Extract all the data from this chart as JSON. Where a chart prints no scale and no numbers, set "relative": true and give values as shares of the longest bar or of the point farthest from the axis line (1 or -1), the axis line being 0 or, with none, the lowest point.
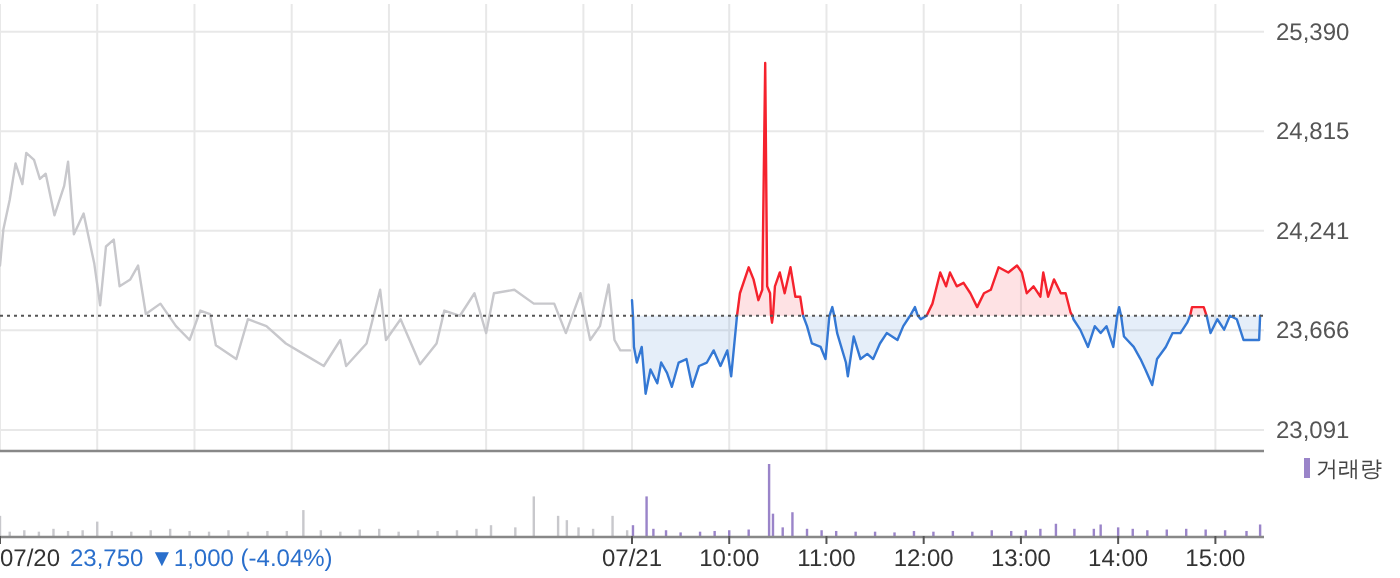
{
  "chart_data": [
    {
      "type": "line",
      "xlim": [
        2.5,
        15.5
      ],
      "ylim": [
        22975,
        25550
      ],
      "xticks": [
        2.5,
        3.5,
        4.5,
        5.5,
        6.5,
        7.5,
        8.5,
        9,
        10,
        11,
        12,
        13,
        14,
        15
      ],
      "yticks": [
        {
          "value": 23091,
          "label": "23,091"
        },
        {
          "value": 23666,
          "label": "23,666"
        },
        {
          "value": 24241,
          "label": "24,241"
        },
        {
          "value": 24815,
          "label": "24,815"
        },
        {
          "value": 25390,
          "label": "25,390"
        }
      ],
      "grid": true,
      "tick_labels": "y",
      "ref_lines": [
        {
          "axis": "y",
          "value": 23750,
          "color": "#555555",
          "line_style": "dotted"
        }
      ],
      "x": [
        9.0,
        9.01,
        9.02,
        9.05,
        9.1,
        9.14,
        9.19,
        9.26,
        9.3,
        9.36,
        9.41,
        9.48,
        9.56,
        9.62,
        9.69,
        9.77,
        9.84,
        9.91,
        9.98,
        10.02,
        10.08,
        10.11,
        10.2,
        10.25,
        10.3,
        10.34,
        10.37,
        10.39,
        10.42,
        10.43,
        10.44,
        10.45,
        10.47,
        10.52,
        10.57,
        10.63,
        10.68,
        10.73,
        10.76,
        10.8,
        10.85,
        10.94,
        10.99,
        11.03,
        11.06,
        11.08,
        11.11,
        11.2,
        11.22,
        11.28,
        11.35,
        11.42,
        11.48,
        11.55,
        11.62,
        11.73,
        11.79,
        11.86,
        11.91,
        11.94,
        11.97,
        12.03,
        12.09,
        12.17,
        12.23,
        12.27,
        12.34,
        12.41,
        12.48,
        12.55,
        12.62,
        12.69,
        12.77,
        12.87,
        12.96,
        13.01,
        13.06,
        13.13,
        13.2,
        13.23,
        13.28,
        13.34,
        13.41,
        13.46,
        13.51,
        13.53,
        13.54,
        13.61,
        13.69,
        13.76,
        13.82,
        13.88,
        13.95,
        13.99,
        14.01,
        14.03,
        14.06,
        14.16,
        14.23,
        14.28,
        14.35,
        14.4,
        14.49,
        14.56,
        14.64,
        14.71,
        14.74,
        14.76,
        14.88,
        14.91,
        14.95,
        15.02,
        15.09,
        15.15,
        15.22,
        15.29,
        15.45,
        15.46
      ],
      "series": [
        {
          "color": "#c8c8cc",
          "x": [
            2.5,
            2.535,
            2.6,
            2.66,
            2.73,
            2.77,
            2.85,
            2.91,
            2.97,
            3.06,
            3.16,
            3.2,
            3.26,
            3.36,
            3.47,
            3.53,
            3.59,
            3.67,
            3.73,
            3.84,
            3.92,
            4.0,
            4.15,
            4.31,
            4.45,
            4.56,
            4.66,
            4.72,
            4.93,
            5.05,
            5.24,
            5.44,
            5.65,
            5.83,
            6.0,
            6.06,
            6.27,
            6.41,
            6.47,
            6.62,
            6.82,
            6.99,
            7.07,
            7.23,
            7.38,
            7.5,
            7.58,
            7.79,
            7.99,
            8.2,
            8.32,
            8.47,
            8.57,
            8.67,
            8.76,
            8.82,
            8.88,
            8.98
          ],
          "values": [
            24040,
            24250,
            24420,
            24630,
            24510,
            24690,
            24650,
            24540,
            24570,
            24330,
            24500,
            24640,
            24220,
            24340,
            24050,
            23810,
            24150,
            24190,
            23920,
            23960,
            24040,
            23760,
            23820,
            23690,
            23610,
            23780,
            23760,
            23580,
            23500,
            23730,
            23690,
            23590,
            23520,
            23460,
            23610,
            23460,
            23590,
            23900,
            23610,
            23730,
            23470,
            23590,
            23780,
            23750,
            23880,
            23650,
            23880,
            23900,
            23820,
            23820,
            23650,
            23880,
            23610,
            23690,
            23930,
            23610,
            23550,
            23550
          ]
        },
        {
          "type": "area",
          "color": "#f5222d",
          "values": [
            null,
            null,
            null,
            null,
            null,
            null,
            null,
            null,
            null,
            null,
            null,
            null,
            null,
            null,
            null,
            null,
            null,
            null,
            null,
            null,
            23750,
            23880,
            24030,
            23960,
            23840,
            23900,
            25210,
            23920,
            23880,
            23750,
            23710,
            23750,
            23920,
            24000,
            23880,
            24030,
            23860,
            23860,
            23750,
            null,
            null,
            null,
            null,
            null,
            null,
            null,
            null,
            null,
            null,
            null,
            null,
            null,
            null,
            null,
            null,
            null,
            null,
            null,
            null,
            null,
            null,
            23750,
            23820,
            24000,
            23920,
            24000,
            23920,
            23940,
            23880,
            23800,
            23880,
            23900,
            24030,
            24000,
            24040,
            24000,
            23880,
            23920,
            23860,
            24000,
            23860,
            23960,
            23880,
            23880,
            23770,
            23750,
            null,
            null,
            null,
            null,
            null,
            null,
            null,
            null,
            null,
            null,
            null,
            null,
            null,
            null,
            null,
            null,
            null,
            null,
            null,
            null,
            23750,
            23800,
            23800,
            23750,
            null,
            null,
            null,
            null,
            null,
            null,
            null,
            null
          ]
        },
        {
          "type": "area",
          "color": "#3478d4",
          "values": [
            23840,
            23750,
            23570,
            23480,
            23570,
            23300,
            23440,
            23360,
            23480,
            23420,
            23340,
            23480,
            23500,
            23340,
            23460,
            23480,
            23550,
            23460,
            23550,
            23400,
            23750,
            null,
            null,
            null,
            null,
            null,
            null,
            null,
            null,
            null,
            null,
            null,
            null,
            null,
            null,
            null,
            null,
            null,
            23750,
            23690,
            23590,
            23570,
            23500,
            23750,
            23800,
            23750,
            23650,
            23480,
            23400,
            23630,
            23500,
            23530,
            23500,
            23590,
            23650,
            23610,
            23690,
            23750,
            23800,
            23750,
            23730,
            23750,
            null,
            null,
            null,
            null,
            null,
            null,
            null,
            null,
            null,
            null,
            null,
            null,
            null,
            null,
            null,
            null,
            null,
            null,
            null,
            null,
            null,
            null,
            null,
            23750,
            23730,
            23670,
            23570,
            23690,
            23650,
            23690,
            23570,
            23750,
            23800,
            23750,
            23630,
            23570,
            23500,
            23440,
            23350,
            23500,
            23570,
            23650,
            23650,
            23710,
            23750,
            null,
            null,
            23750,
            23650,
            23730,
            23670,
            23750,
            23730,
            23610,
            23610,
            23750
          ]
        }
      ]
    },
    {
      "type": "bar",
      "relative": true,
      "xlim": [
        2.5,
        15.5
      ],
      "xticks": [
        {
          "value": 2.5,
          "label": "07/20"
        },
        {
          "value": 9,
          "label": "07/21"
        },
        {
          "value": 10,
          "label": "10:00"
        },
        {
          "value": 11,
          "label": "11:00"
        },
        {
          "value": 12,
          "label": "12:00"
        },
        {
          "value": 13,
          "label": "13:00"
        },
        {
          "value": 14,
          "label": "14:00"
        },
        {
          "value": 15,
          "label": "15:00"
        }
      ],
      "tick_labels": "x",
      "legend": "top right",
      "annotations": [
        "23,750 ▼1,000 (-4.04%)"
      ],
      "series": [
        {
          "color": "#c8c8cc",
          "x": [
            2.5,
            2.6,
            2.75,
            2.9,
            3.05,
            3.2,
            3.35,
            3.5,
            3.65,
            3.85,
            4.05,
            4.25,
            4.45,
            4.65,
            4.85,
            5.05,
            5.25,
            5.45,
            5.62,
            5.8,
            6.0,
            6.2,
            6.4,
            6.6,
            6.8,
            7.0,
            7.2,
            7.4,
            7.55,
            7.8,
            7.99,
            8.24,
            8.33,
            8.45,
            8.6,
            8.8,
            8.95
          ],
          "values": [
            0.28,
            0.06,
            0.08,
            0.06,
            0.1,
            0.07,
            0.08,
            0.2,
            0.07,
            0.06,
            0.08,
            0.1,
            0.07,
            0.06,
            0.08,
            0.06,
            0.07,
            0.07,
            0.36,
            0.08,
            0.06,
            0.09,
            0.1,
            0.06,
            0.08,
            0.07,
            0.08,
            0.1,
            0.15,
            0.12,
            0.55,
            0.28,
            0.22,
            0.12,
            0.1,
            0.28,
            0.08
          ]
        },
        {
          "name": "거래량",
          "color": "#9a84c9",
          "x": [
            9.01,
            9.15,
            9.22,
            9.35,
            9.5,
            9.7,
            9.85,
            10.0,
            10.2,
            10.41,
            10.45,
            10.55,
            10.65,
            10.8,
            10.95,
            11.1,
            11.3,
            11.5,
            11.7,
            11.9,
            12.1,
            12.3,
            12.5,
            12.7,
            12.9,
            13.05,
            13.2,
            13.36,
            13.55,
            13.75,
            13.82,
            14.0,
            14.15,
            14.3,
            14.5,
            14.7,
            14.9,
            15.1,
            15.32,
            15.46
          ],
          "values": [
            0.15,
            0.55,
            0.1,
            0.08,
            0.05,
            0.06,
            0.07,
            0.08,
            0.09,
            1,
            0.31,
            0.12,
            0.33,
            0.1,
            0.08,
            0.07,
            0.06,
            0.06,
            0.05,
            0.07,
            0.06,
            0.07,
            0.06,
            0.08,
            0.07,
            0.08,
            0.1,
            0.17,
            0.1,
            0.1,
            0.16,
            0.12,
            0.1,
            0.08,
            0.09,
            0.1,
            0.09,
            0.08,
            0.07,
            0.16
          ]
        }
      ]
    }
  ]
}
